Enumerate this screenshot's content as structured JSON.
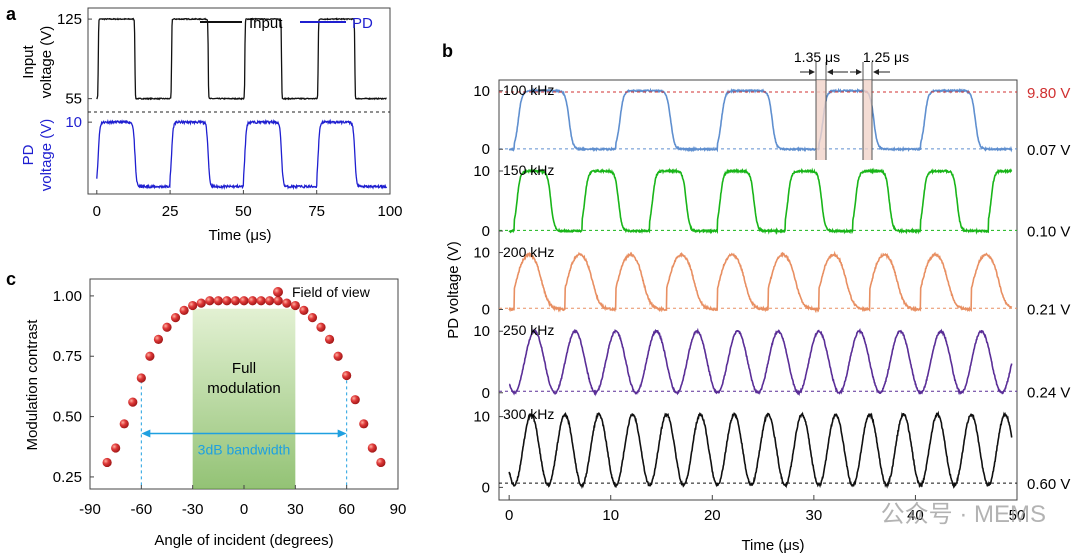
{
  "panel_labels": [
    "a",
    "b",
    "c"
  ],
  "watermark": "公众号 · MEMS",
  "chart_data": [
    {
      "id": "a",
      "type": "line",
      "xlabel": "Time (μs)",
      "xlim": [
        -3,
        100
      ],
      "x_ticks": [
        0,
        25,
        50,
        75,
        100
      ],
      "period_us": 25,
      "legend": {
        "placement": "top-right",
        "entries": [
          "Input",
          "PD"
        ]
      },
      "top": {
        "ylabel": [
          "Input",
          "voltage (V)"
        ],
        "y_ticks": [
          55,
          125
        ],
        "ylim": [
          45,
          133
        ],
        "series": [
          {
            "name": "Input",
            "color": "#111111",
            "low": 55,
            "high": 125,
            "duty": 0.5,
            "first_rise_us": 0
          }
        ]
      },
      "bottom": {
        "ylabel": [
          "PD",
          "voltage (V)"
        ],
        "y_ticks": [
          10
        ],
        "ylim": [
          0,
          11.2
        ],
        "series": [
          {
            "name": "PD",
            "color": "#1f1fd0",
            "low": 0.5,
            "high": 10.0,
            "duty": 0.5,
            "first_rise_us": 0
          }
        ]
      }
    },
    {
      "id": "b",
      "type": "line",
      "xlabel": "Time (μs)",
      "ylabel": "PD voltage (V)",
      "xlim": [
        -1,
        50
      ],
      "x_ticks": [
        0,
        10,
        20,
        30,
        40,
        50
      ],
      "ylim": [
        -1.5,
        11.5
      ],
      "annotations": [
        "1.35 μs",
        "1.25 μs"
      ],
      "panels": [
        {
          "label": "100 kHz",
          "color": "#5f8fcf",
          "freq_khz": 100,
          "low": 0,
          "high": 10,
          "right_labels": [
            "9.80 V",
            "0.07 V"
          ],
          "top_label_color": "#d03030",
          "y_ticks": [
            0,
            10
          ],
          "dashed_ref": [
            9.8,
            0.07
          ],
          "dashed_colors": [
            "#d03030",
            "#5f8fcf"
          ]
        },
        {
          "label": "150 kHz",
          "color": "#19b519",
          "freq_khz": 150,
          "low": 0,
          "high": 10,
          "right_labels": [
            "0.10 V"
          ],
          "y_ticks": [
            0,
            10
          ],
          "dashed_ref": [
            0.1
          ],
          "dashed_colors": [
            "#19b519"
          ]
        },
        {
          "label": "200 kHz",
          "color": "#e88f62",
          "freq_khz": 200,
          "low": 0,
          "high": 10,
          "right_labels": [
            "0.21 V"
          ],
          "y_ticks": [
            0,
            10
          ],
          "dashed_ref": [
            0.21
          ],
          "dashed_colors": [
            "#e88f62"
          ]
        },
        {
          "label": "250 kHz",
          "color": "#5a2e97",
          "freq_khz": 250,
          "low": 0,
          "high": 10,
          "right_labels": [
            "0.24 V"
          ],
          "y_ticks": [
            0,
            10
          ],
          "dashed_ref": [
            0.24
          ],
          "dashed_colors": [
            "#5a2e97"
          ]
        },
        {
          "label": "300 kHz",
          "color": "#111111",
          "freq_khz": 300,
          "low": 0,
          "high": 10,
          "right_labels": [
            "0.60 V"
          ],
          "y_ticks": [
            0,
            10
          ],
          "dashed_ref": [
            0.6
          ],
          "dashed_colors": [
            "#111111"
          ]
        }
      ]
    },
    {
      "id": "c",
      "type": "scatter",
      "xlabel": "Angle of incident (degrees)",
      "ylabel": "Modulation contrast",
      "xlim": [
        -90,
        90
      ],
      "ylim": [
        0.2,
        1.07
      ],
      "x_ticks": [
        -90,
        -60,
        -30,
        0,
        30,
        60,
        90
      ],
      "y_ticks": [
        0.25,
        0.5,
        0.75,
        1.0
      ],
      "y_tick_labels": [
        "0.25",
        "0.50",
        "0.75",
        "1.00"
      ],
      "legend": {
        "placement": "top-right",
        "entries": [
          "Field of view"
        ]
      },
      "marker_color": "#e03a3a",
      "points": {
        "x": [
          -80,
          -75,
          -70,
          -65,
          -60,
          -55,
          -50,
          -45,
          -40,
          -35,
          -30,
          -25,
          -20,
          -15,
          -10,
          -5,
          0,
          5,
          10,
          15,
          20,
          25,
          30,
          35,
          40,
          45,
          50,
          55,
          60,
          65,
          70,
          75,
          80
        ],
        "y": [
          0.31,
          0.37,
          0.47,
          0.56,
          0.66,
          0.75,
          0.82,
          0.87,
          0.91,
          0.94,
          0.96,
          0.97,
          0.98,
          0.98,
          0.98,
          0.98,
          0.98,
          0.98,
          0.98,
          0.98,
          0.98,
          0.97,
          0.96,
          0.94,
          0.91,
          0.87,
          0.82,
          0.75,
          0.67,
          0.57,
          0.47,
          0.37,
          0.31
        ]
      },
      "shaded_region": {
        "x": [
          -30,
          30
        ],
        "label": [
          "Full",
          "modulation"
        ]
      },
      "bandwidth": {
        "x": [
          -60,
          60
        ],
        "y": 0.43,
        "label": "3dB bandwidth",
        "color": "#1fa0e0"
      }
    }
  ]
}
